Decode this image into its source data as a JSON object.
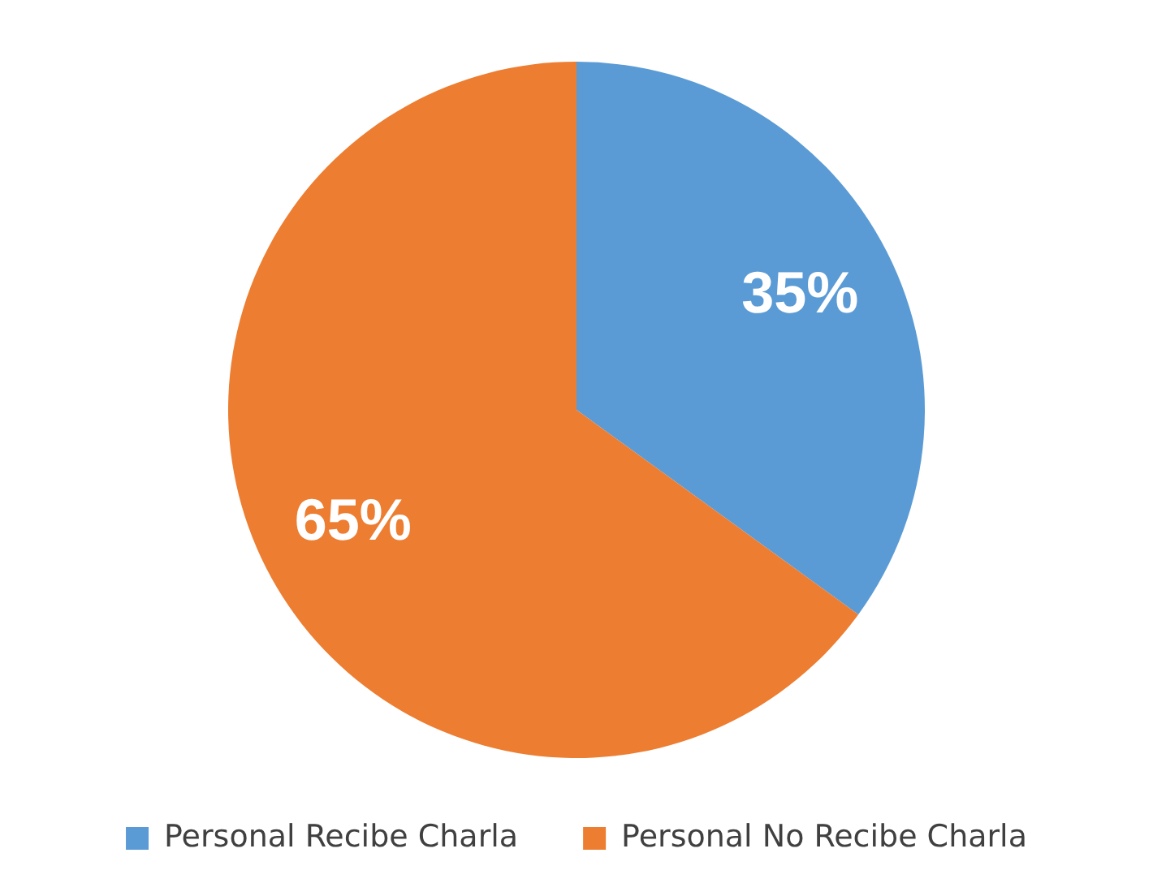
{
  "chart_data": {
    "type": "pie",
    "categories": [
      "Personal Recibe Charla",
      "Personal No Recibe Charla"
    ],
    "values": [
      35,
      65
    ],
    "colors": [
      "#5b9bd5",
      "#ed7d31"
    ],
    "value_labels": [
      "35%",
      "65%"
    ],
    "legend": "bottom"
  }
}
